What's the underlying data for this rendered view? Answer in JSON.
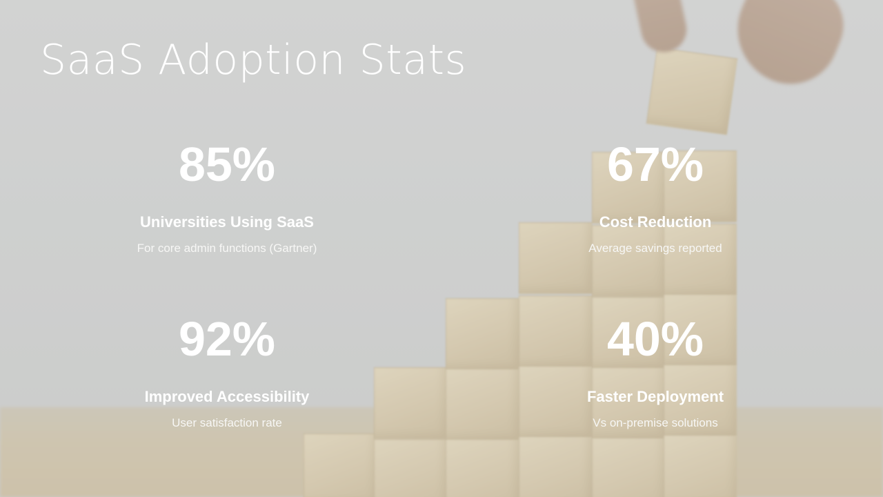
{
  "slide": {
    "title": "SaaS Adoption Stats"
  },
  "stats": [
    {
      "value": "85%",
      "label": "Universities Using SaaS",
      "note": "For core admin functions (Gartner)"
    },
    {
      "value": "67%",
      "label": "Cost Reduction",
      "note": "Average savings reported"
    },
    {
      "value": "92%",
      "label": "Improved Accessibility",
      "note": "User satisfaction rate"
    },
    {
      "value": "40%",
      "label": "Faster Deployment",
      "note": "Vs on-premise solutions"
    }
  ]
}
